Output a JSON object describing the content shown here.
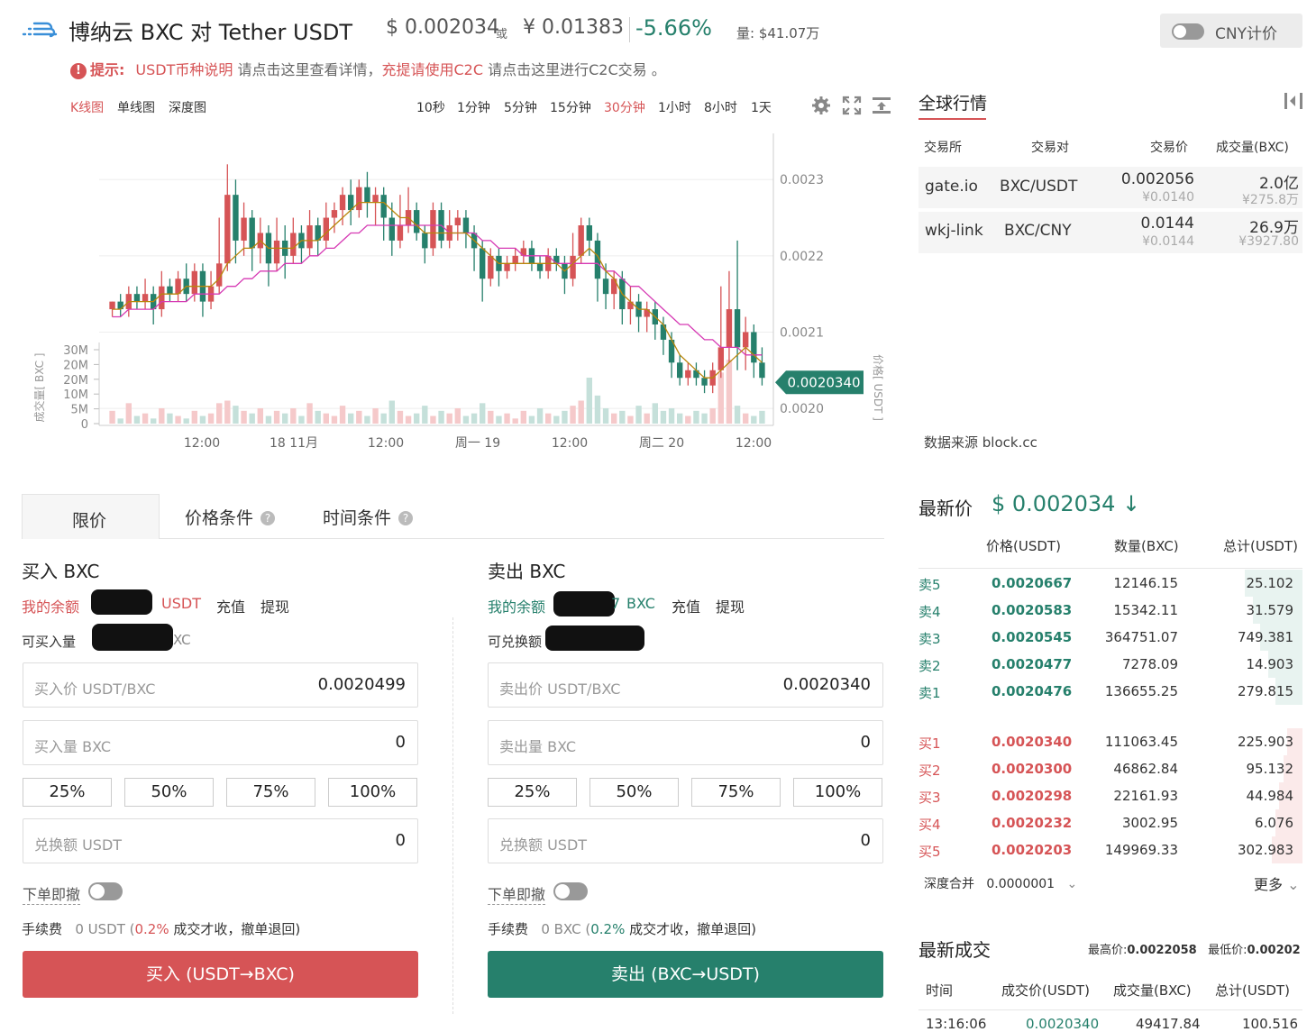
{
  "header": {
    "pair_title": "博纳云 BXC  对 Tether USDT",
    "price_usd": "$ 0.002034",
    "or": "或",
    "price_cny": "¥ 0.01383",
    "change": "-5.66%",
    "volume": "量:  $41.07万",
    "cny_toggle_label": "CNY计价"
  },
  "notice": {
    "label": "提示:",
    "link1": "USDT币种说明",
    "text1": " 请点击这里查看详情，",
    "link2": "充提请使用C2C",
    "text2": "  请点击这里进行C2C交易  。"
  },
  "chart_toolbar": {
    "types": [
      "K线图",
      "单线图",
      "深度图"
    ],
    "active_type": 0,
    "intervals": [
      "10秒",
      "1分钟",
      "5分钟",
      "15分钟",
      "30分钟",
      "1小时",
      "8小时",
      "1天"
    ],
    "active_interval": 4
  },
  "chart_data": {
    "type": "candlestick",
    "x_tick_labels": [
      "12:00",
      "18 11月",
      "12:00",
      "周一 19",
      "12:00",
      "周二 20",
      "12:00"
    ],
    "price_axis": {
      "ticks": [
        "0.0023",
        "0.0022",
        "0.0021",
        "0.0020"
      ],
      "range": [
        0.00198,
        0.00237
      ],
      "label": "价格[ USDT ]"
    },
    "volume_axis": {
      "ticks": [
        "30M",
        "20M",
        "20M",
        "10M",
        "5M",
        "0"
      ],
      "range": [
        0,
        30
      ],
      "label": "成交量[ BXC ]"
    },
    "current_price_label": "0.0020340",
    "colors": {
      "up": "#d65456",
      "down": "#26806c",
      "ma_fast": "#b8860b",
      "ma_slow": "#d63ab4"
    },
    "candles": [
      [
        0.00213,
        0.00214,
        0.00214,
        0.00212
      ],
      [
        0.00214,
        0.00213,
        0.00215,
        0.00212
      ],
      [
        0.00213,
        0.00215,
        0.00216,
        0.00212
      ],
      [
        0.00215,
        0.00214,
        0.00216,
        0.00213
      ],
      [
        0.00214,
        0.00215,
        0.00217,
        0.00213
      ],
      [
        0.00215,
        0.00213,
        0.00216,
        0.00211
      ],
      [
        0.00213,
        0.00216,
        0.00218,
        0.00212
      ],
      [
        0.00216,
        0.00215,
        0.00217,
        0.00214
      ],
      [
        0.00215,
        0.00217,
        0.00218,
        0.00214
      ],
      [
        0.00217,
        0.00215,
        0.00219,
        0.00214
      ],
      [
        0.00215,
        0.00218,
        0.00219,
        0.00214
      ],
      [
        0.00218,
        0.00214,
        0.00219,
        0.00212
      ],
      [
        0.00214,
        0.00216,
        0.00218,
        0.00213
      ],
      [
        0.00216,
        0.00219,
        0.00225,
        0.00215
      ],
      [
        0.00219,
        0.00228,
        0.00232,
        0.00218
      ],
      [
        0.00228,
        0.00222,
        0.0023,
        0.00219
      ],
      [
        0.00222,
        0.00225,
        0.00227,
        0.0022
      ],
      [
        0.00225,
        0.00221,
        0.00226,
        0.00218
      ],
      [
        0.00221,
        0.00223,
        0.00225,
        0.00219
      ],
      [
        0.00223,
        0.00219,
        0.00224,
        0.00216
      ],
      [
        0.00219,
        0.00222,
        0.00225,
        0.00218
      ],
      [
        0.00222,
        0.0022,
        0.00224,
        0.00217
      ],
      [
        0.0022,
        0.00223,
        0.00225,
        0.00219
      ],
      [
        0.00223,
        0.00221,
        0.00224,
        0.00219
      ],
      [
        0.00221,
        0.00224,
        0.00226,
        0.0022
      ],
      [
        0.00224,
        0.00222,
        0.00225,
        0.0022
      ],
      [
        0.00222,
        0.00225,
        0.00227,
        0.00221
      ],
      [
        0.00225,
        0.00226,
        0.00227,
        0.00223
      ],
      [
        0.00226,
        0.00228,
        0.00229,
        0.00224
      ],
      [
        0.00228,
        0.00226,
        0.0023,
        0.00224
      ],
      [
        0.00226,
        0.00229,
        0.0023,
        0.00225
      ],
      [
        0.00229,
        0.00227,
        0.00231,
        0.00225
      ],
      [
        0.00227,
        0.00228,
        0.00229,
        0.00224
      ],
      [
        0.00228,
        0.00225,
        0.00229,
        0.00222
      ],
      [
        0.00225,
        0.00222,
        0.00227,
        0.0022
      ],
      [
        0.00222,
        0.00224,
        0.00228,
        0.00221
      ],
      [
        0.00224,
        0.00226,
        0.00229,
        0.00223
      ],
      [
        0.00226,
        0.00223,
        0.00227,
        0.00222
      ],
      [
        0.00223,
        0.00221,
        0.00224,
        0.00219
      ],
      [
        0.00221,
        0.00226,
        0.00227,
        0.0022
      ],
      [
        0.00226,
        0.00222,
        0.00227,
        0.00221
      ],
      [
        0.00222,
        0.00224,
        0.00226,
        0.00221
      ],
      [
        0.00224,
        0.00225,
        0.00226,
        0.00222
      ],
      [
        0.00225,
        0.00223,
        0.00226,
        0.00221
      ],
      [
        0.00223,
        0.00221,
        0.00224,
        0.00218
      ],
      [
        0.00221,
        0.00217,
        0.00222,
        0.00214
      ],
      [
        0.00217,
        0.0022,
        0.00221,
        0.00216
      ],
      [
        0.0022,
        0.00218,
        0.00221,
        0.00216
      ],
      [
        0.00218,
        0.00219,
        0.0022,
        0.00217
      ],
      [
        0.00219,
        0.0022,
        0.00221,
        0.00218
      ],
      [
        0.0022,
        0.00221,
        0.00222,
        0.00219
      ],
      [
        0.00221,
        0.00219,
        0.00222,
        0.00218
      ],
      [
        0.00219,
        0.00218,
        0.0022,
        0.00217
      ],
      [
        0.00218,
        0.0022,
        0.00221,
        0.00217
      ],
      [
        0.0022,
        0.00219,
        0.00221,
        0.00218
      ],
      [
        0.00219,
        0.00217,
        0.0022,
        0.00215
      ],
      [
        0.00217,
        0.0022,
        0.00223,
        0.00216
      ],
      [
        0.0022,
        0.00224,
        0.00225,
        0.00219
      ],
      [
        0.00224,
        0.00222,
        0.00225,
        0.0022
      ],
      [
        0.00222,
        0.00217,
        0.00223,
        0.00214
      ],
      [
        0.00217,
        0.00215,
        0.00219,
        0.00213
      ],
      [
        0.00215,
        0.00217,
        0.00218,
        0.00213
      ],
      [
        0.00217,
        0.00213,
        0.00218,
        0.00211
      ],
      [
        0.00213,
        0.00214,
        0.00216,
        0.00211
      ],
      [
        0.00214,
        0.00212,
        0.00215,
        0.0021
      ],
      [
        0.00212,
        0.00213,
        0.00214,
        0.0021
      ],
      [
        0.00213,
        0.00211,
        0.00214,
        0.00209
      ],
      [
        0.00211,
        0.00209,
        0.00212,
        0.00207
      ],
      [
        0.00209,
        0.00206,
        0.0021,
        0.00204
      ],
      [
        0.00206,
        0.00204,
        0.00207,
        0.00203
      ],
      [
        0.00204,
        0.00205,
        0.00206,
        0.00203
      ],
      [
        0.00205,
        0.00204,
        0.00206,
        0.00203
      ],
      [
        0.00204,
        0.00203,
        0.00205,
        0.00202
      ],
      [
        0.00203,
        0.00205,
        0.00206,
        0.00202
      ],
      [
        0.00205,
        0.00208,
        0.00216,
        0.00204
      ],
      [
        0.00208,
        0.00213,
        0.00218,
        0.00206
      ],
      [
        0.00213,
        0.00208,
        0.00222,
        0.00205
      ],
      [
        0.00208,
        0.0021,
        0.00212,
        0.00205
      ],
      [
        0.0021,
        0.00206,
        0.00211,
        0.00204
      ],
      [
        0.00206,
        0.00204,
        0.00208,
        0.00203
      ]
    ],
    "ma_fast": [
      0.00213,
      0.00213,
      0.00214,
      0.00214,
      0.00214,
      0.00214,
      0.00215,
      0.00215,
      0.00215,
      0.00216,
      0.00216,
      0.00216,
      0.00216,
      0.00217,
      0.00219,
      0.0022,
      0.00221,
      0.00221,
      0.00222,
      0.00221,
      0.00221,
      0.00221,
      0.00221,
      0.00222,
      0.00222,
      0.00222,
      0.00223,
      0.00224,
      0.00225,
      0.00226,
      0.00227,
      0.00227,
      0.00227,
      0.00227,
      0.00226,
      0.00225,
      0.00225,
      0.00224,
      0.00223,
      0.00223,
      0.00223,
      0.00223,
      0.00223,
      0.00223,
      0.00222,
      0.00221,
      0.0022,
      0.00219,
      0.00219,
      0.00219,
      0.00219,
      0.00219,
      0.00219,
      0.00219,
      0.00219,
      0.00218,
      0.00219,
      0.0022,
      0.00221,
      0.0022,
      0.00218,
      0.00217,
      0.00215,
      0.00214,
      0.00213,
      0.00213,
      0.00212,
      0.00211,
      0.00209,
      0.00207,
      0.00206,
      0.00205,
      0.00204,
      0.00204,
      0.00205,
      0.00206,
      0.00207,
      0.00208,
      0.00207,
      0.00206
    ],
    "ma_slow": [
      0.00212,
      0.00212,
      0.00213,
      0.00213,
      0.00213,
      0.00213,
      0.00214,
      0.00214,
      0.00214,
      0.00214,
      0.00215,
      0.00215,
      0.00215,
      0.00215,
      0.00216,
      0.00216,
      0.00217,
      0.00217,
      0.00218,
      0.00218,
      0.00218,
      0.00219,
      0.00219,
      0.00219,
      0.0022,
      0.0022,
      0.00221,
      0.00221,
      0.00222,
      0.00223,
      0.00223,
      0.00224,
      0.00224,
      0.00224,
      0.00224,
      0.00224,
      0.00224,
      0.00224,
      0.00224,
      0.00224,
      0.00224,
      0.00223,
      0.00223,
      0.00223,
      0.00223,
      0.00222,
      0.00222,
      0.00221,
      0.00221,
      0.00221,
      0.0022,
      0.0022,
      0.0022,
      0.0022,
      0.00219,
      0.00219,
      0.00219,
      0.00219,
      0.00219,
      0.00219,
      0.00218,
      0.00218,
      0.00217,
      0.00216,
      0.00216,
      0.00215,
      0.00214,
      0.00213,
      0.00212,
      0.00211,
      0.00211,
      0.0021,
      0.00209,
      0.00209,
      0.00208,
      0.00208,
      0.00208,
      0.00207,
      0.00207,
      0.00207
    ],
    "volumes": [
      5,
      2,
      8,
      3,
      4,
      2,
      6,
      4,
      3,
      2,
      5,
      3,
      4,
      8,
      9,
      7,
      5,
      4,
      6,
      3,
      5,
      4,
      6,
      3,
      8,
      5,
      4,
      3,
      7,
      4,
      5,
      3,
      6,
      4,
      9,
      5,
      3,
      4,
      7,
      3,
      5,
      4,
      6,
      3,
      4,
      8,
      5,
      3,
      4,
      2,
      5,
      3,
      6,
      4,
      3,
      5,
      7,
      9,
      18,
      11,
      6,
      4,
      5,
      3,
      7,
      4,
      8,
      5,
      6,
      4,
      3,
      5,
      4,
      6,
      20,
      25,
      7,
      4,
      3,
      5
    ]
  },
  "global_market": {
    "title": "全球行情",
    "headers": [
      "交易所",
      "交易对",
      "交易价",
      "成交量(BXC)"
    ],
    "rows": [
      {
        "exchange": "gate.io",
        "pair": "BXC/USDT",
        "price": "0.002056",
        "price_cny": "¥0.0140",
        "volume": "2.0亿",
        "volume_cny": "¥275.8万"
      },
      {
        "exchange": "wkj-link",
        "pair": "BXC/CNY",
        "price": "0.0144",
        "price_cny": "¥0.0144",
        "volume": "26.9万",
        "volume_cny": "¥3927.80"
      }
    ],
    "source": "数据来源 block.cc"
  },
  "order_tabs": [
    "限价",
    "价格条件",
    "时间条件"
  ],
  "buy": {
    "title": "买入 BXC",
    "balance_label": "我的余额",
    "balance_currency": "USDT",
    "deposit": "充值",
    "withdraw": "提现",
    "available_label": "可买入量",
    "available_suffix": "XC",
    "price_placeholder": "买入价 USDT/BXC",
    "price_value": "0.0020499",
    "amount_placeholder": "买入量 BXC",
    "amount_value": "0",
    "percents": [
      "25%",
      "50%",
      "75%",
      "100%"
    ],
    "total_placeholder": "兑换额 USDT",
    "total_value": "0",
    "instant_cancel": "下单即撤",
    "fee_label": "手续费",
    "fee_value": "0 USDT",
    "fee_rate_pre": " (",
    "fee_rate": "0.2%",
    "fee_note": " 成交才收，撤单退回)",
    "button": "买入 (USDT→BXC)"
  },
  "sell": {
    "title": "卖出 BXC",
    "balance_label": "我的余额",
    "balance_currency": "BXC",
    "balance_tail": "7",
    "deposit": "充值",
    "withdraw": "提现",
    "available_label": "可兑换额",
    "price_placeholder": "卖出价 USDT/BXC",
    "price_value": "0.0020340",
    "amount_placeholder": "卖出量 BXC",
    "amount_value": "0",
    "percents": [
      "25%",
      "50%",
      "75%",
      "100%"
    ],
    "total_placeholder": "兑换额 USDT",
    "total_value": "0",
    "instant_cancel": "下单即撤",
    "fee_label": "手续费",
    "fee_value": "0 BXC",
    "fee_rate_pre": " (",
    "fee_rate": "0.2%",
    "fee_note": " 成交才收，撤单退回)",
    "button": "卖出 (BXC→USDT)"
  },
  "order_book": {
    "latest_label": "最新价",
    "latest_value": "$ 0.002034 ↓",
    "headers": [
      "价格(USDT)",
      "数量(BXC)",
      "总计(USDT)"
    ],
    "asks": [
      {
        "label": "卖5",
        "price": "0.0020667",
        "qty": "12146.15",
        "total": "25.102",
        "depth": 0.15
      },
      {
        "label": "卖4",
        "price": "0.0020583",
        "qty": "15342.11",
        "total": "31.579",
        "depth": 0.13
      },
      {
        "label": "卖3",
        "price": "0.0020545",
        "qty": "364751.07",
        "total": "749.381",
        "depth": 0.11
      },
      {
        "label": "卖2",
        "price": "0.0020477",
        "qty": "7278.09",
        "total": "14.903",
        "depth": 0.09
      },
      {
        "label": "卖1",
        "price": "0.0020476",
        "qty": "136655.25",
        "total": "279.815",
        "depth": 0.07
      }
    ],
    "bids": [
      {
        "label": "买1",
        "price": "0.0020340",
        "qty": "111063.45",
        "total": "225.903",
        "depth": 0.04
      },
      {
        "label": "买2",
        "price": "0.0020300",
        "qty": "46862.84",
        "total": "95.132",
        "depth": 0.05
      },
      {
        "label": "买3",
        "price": "0.0020298",
        "qty": "22161.93",
        "total": "44.984",
        "depth": 0.06
      },
      {
        "label": "买4",
        "price": "0.0020232",
        "qty": "3002.95",
        "total": "6.076",
        "depth": 0.07
      },
      {
        "label": "买5",
        "price": "0.0020203",
        "qty": "149969.33",
        "total": "302.983",
        "depth": 0.08
      }
    ],
    "depth_merge_label": "深度合并",
    "depth_merge_value": "0.0000001",
    "more": "更多"
  },
  "trades": {
    "title": "最新成交",
    "high_label": "最高价:",
    "high_value": "0.0022058",
    "low_label": "最低价:",
    "low_value": "0.00202",
    "headers": [
      "时间",
      "成交价(USDT)",
      "成交量(BXC)",
      "总计(USDT)"
    ],
    "rows": [
      {
        "time": "13:16:06",
        "price": "0.0020340",
        "qty": "49417.84",
        "total": "100.516"
      }
    ]
  }
}
